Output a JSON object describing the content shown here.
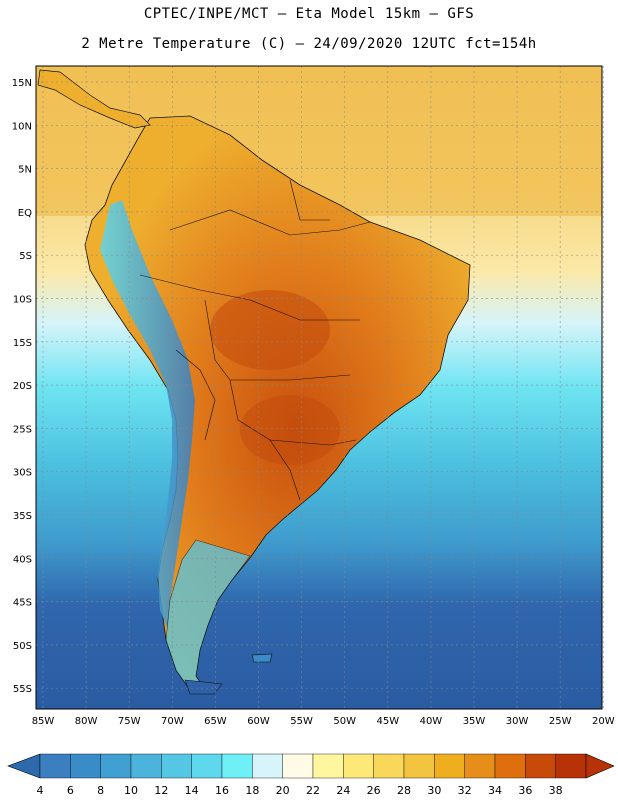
{
  "title": {
    "line1": "CPTEC/INPE/MCT –  Eta Model 15km – GFS",
    "line2": "2 Metre Temperature (C) – 24/09/2020 12UTC fct=154h"
  },
  "axes": {
    "lat_labels": [
      "15N",
      "10N",
      "5N",
      "EQ",
      "5S",
      "10S",
      "15S",
      "20S",
      "25S",
      "30S",
      "35S",
      "40S",
      "45S",
      "50S",
      "55S"
    ],
    "lon_labels": [
      "85W",
      "80W",
      "75W",
      "70W",
      "65W",
      "60W",
      "55W",
      "50W",
      "45W",
      "40W",
      "35W",
      "30W",
      "25W",
      "20W"
    ]
  },
  "colorbar": {
    "labels": [
      "4",
      "6",
      "8",
      "10",
      "12",
      "14",
      "16",
      "18",
      "20",
      "22",
      "24",
      "26",
      "28",
      "30",
      "32",
      "34",
      "36",
      "38"
    ],
    "colors": [
      "#3b7fc0",
      "#3a8cc8",
      "#41a0d2",
      "#4cb4dc",
      "#55c6e4",
      "#5ed8ec",
      "#6ef0f6",
      "#d6f4fa",
      "#fffbe6",
      "#fff6a0",
      "#fde878",
      "#f8d75a",
      "#f2c440",
      "#eeae1e",
      "#e58f1a",
      "#de6e0e",
      "#c84a08",
      "#b83208"
    ],
    "low_color": "#2c6aab",
    "high_color": "#b83208"
  },
  "legend": {
    "ocean_color": "#2f61a8",
    "land_color": "#e6a535"
  }
}
